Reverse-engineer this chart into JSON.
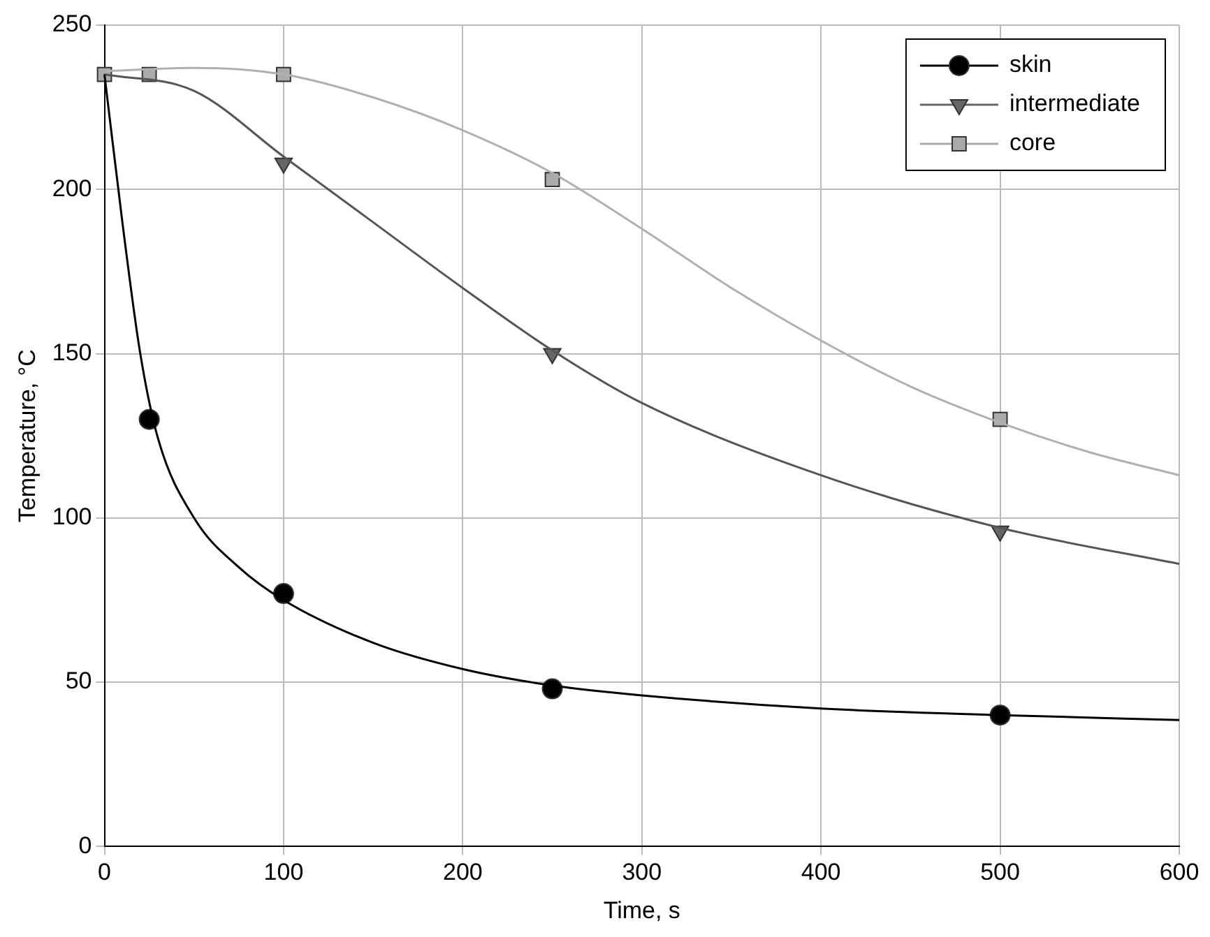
{
  "chart_data": {
    "type": "scatter",
    "xlabel": "Time, s",
    "ylabel": "Temperature, °C",
    "xlim": [
      0,
      600
    ],
    "xticks": [
      0,
      100,
      200,
      300,
      400,
      500,
      600
    ],
    "ylim": [
      0,
      250
    ],
    "yticks": [
      0,
      50,
      100,
      150,
      200,
      250
    ],
    "grid": true,
    "legend": "top right",
    "series": [
      {
        "type": "line",
        "marker": "none",
        "color": "#000000",
        "x": [
          0,
          10,
          20,
          30,
          50,
          75,
          100,
          150,
          200,
          250,
          300,
          400,
          500,
          600
        ],
        "values": [
          235,
          190,
          150,
          124,
          100,
          85,
          75,
          62,
          54,
          49,
          46,
          42,
          40,
          38.5
        ]
      },
      {
        "type": "line",
        "marker": "none",
        "color": "#555555",
        "x": [
          0,
          50,
          100,
          150,
          200,
          250,
          300,
          400,
          500,
          600
        ],
        "values": [
          235,
          230,
          210,
          190,
          170,
          151,
          135,
          113,
          97,
          86
        ]
      },
      {
        "type": "line",
        "marker": "none",
        "color": "#b0b0b0",
        "x": [
          0,
          50,
          100,
          150,
          200,
          250,
          300,
          350,
          400,
          450,
          500,
          550,
          600
        ],
        "values": [
          236,
          237,
          235,
          228,
          218,
          205,
          188,
          170,
          154,
          140,
          129,
          120,
          113
        ]
      },
      {
        "name": "skin",
        "marker": "circle",
        "color": "#000000",
        "x": [
          25,
          100,
          250,
          500
        ],
        "values": [
          130,
          77,
          48,
          40
        ]
      },
      {
        "name": "intermediate",
        "marker": "triangle",
        "color": "#666666",
        "x": [
          100,
          250,
          500
        ],
        "values": [
          208,
          150,
          96
        ]
      },
      {
        "name": "core",
        "marker": "square",
        "color": "#aaaaaa",
        "x": [
          0,
          25,
          100,
          250,
          500
        ],
        "values": [
          235,
          235,
          235,
          203,
          130
        ]
      }
    ]
  }
}
